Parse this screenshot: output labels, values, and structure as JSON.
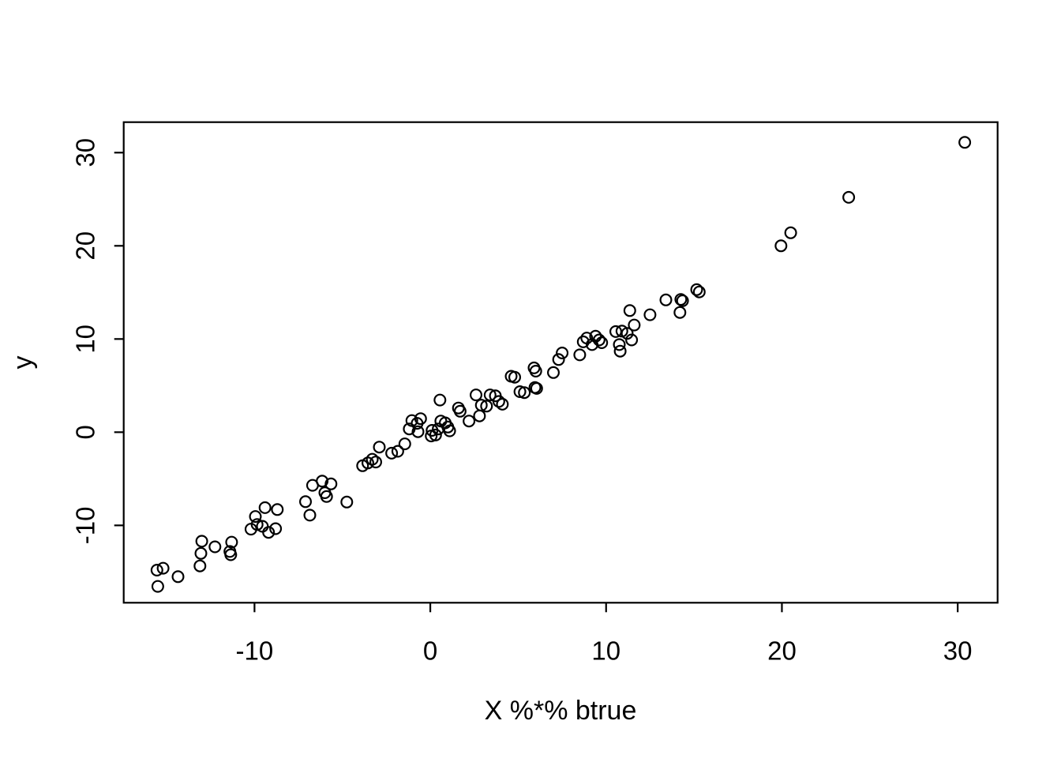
{
  "colors": {
    "foreground": "#000000",
    "background": "#ffffff"
  },
  "chart_data": {
    "type": "scatter",
    "title": "",
    "xlabel": "X %*% btrue",
    "ylabel": "y",
    "marker": "open-circle",
    "grid": false,
    "legend": null,
    "xlim": [
      -17.44,
      32.27
    ],
    "ylim": [
      -18.3,
      33.27
    ],
    "x_tick_values": [
      -10,
      0,
      10,
      20,
      30
    ],
    "x_tick_labels": [
      "-10",
      "0",
      "10",
      "20",
      "30"
    ],
    "y_tick_values": [
      -10,
      0,
      10,
      20,
      30
    ],
    "y_tick_labels": [
      "-10",
      "0",
      "10",
      "20",
      "30"
    ],
    "points": [
      [
        -15.5,
        -16.55
      ],
      [
        -15.55,
        -14.8
      ],
      [
        -15.2,
        -14.6
      ],
      [
        -14.35,
        -15.5
      ],
      [
        -13.1,
        -14.35
      ],
      [
        -13.05,
        -13.0
      ],
      [
        -13.0,
        -11.7
      ],
      [
        -12.25,
        -12.3
      ],
      [
        -11.4,
        -12.8
      ],
      [
        -11.35,
        -13.15
      ],
      [
        -11.3,
        -11.8
      ],
      [
        -10.2,
        -10.4
      ],
      [
        -9.95,
        -9.05
      ],
      [
        -9.85,
        -9.9
      ],
      [
        -9.55,
        -10.1
      ],
      [
        -9.4,
        -8.1
      ],
      [
        -9.2,
        -10.75
      ],
      [
        -8.8,
        -10.35
      ],
      [
        -8.7,
        -8.3
      ],
      [
        -7.1,
        -7.45
      ],
      [
        -6.85,
        -8.9
      ],
      [
        -6.7,
        -5.7
      ],
      [
        -6.15,
        -5.25
      ],
      [
        -6.0,
        -6.5
      ],
      [
        -5.9,
        -6.9
      ],
      [
        -5.65,
        -5.55
      ],
      [
        -4.75,
        -7.5
      ],
      [
        -3.85,
        -3.6
      ],
      [
        -3.55,
        -3.3
      ],
      [
        -3.3,
        -2.9
      ],
      [
        -3.1,
        -3.2
      ],
      [
        -2.9,
        -1.6
      ],
      [
        -2.2,
        -2.25
      ],
      [
        -1.85,
        -2.05
      ],
      [
        -1.45,
        -1.25
      ],
      [
        -1.05,
        1.25
      ],
      [
        -0.75,
        0.95
      ],
      [
        -0.55,
        1.45
      ],
      [
        -0.7,
        0.05
      ],
      [
        -1.2,
        0.35
      ],
      [
        0.1,
        0.2
      ],
      [
        0.05,
        -0.4
      ],
      [
        0.3,
        -0.3
      ],
      [
        0.45,
        0.35
      ],
      [
        0.6,
        1.2
      ],
      [
        0.85,
        1.0
      ],
      [
        1.0,
        0.55
      ],
      [
        1.1,
        0.15
      ],
      [
        0.55,
        3.45
      ],
      [
        1.6,
        2.6
      ],
      [
        1.7,
        2.25
      ],
      [
        2.2,
        1.2
      ],
      [
        2.6,
        4.0
      ],
      [
        2.8,
        1.75
      ],
      [
        2.9,
        2.9
      ],
      [
        3.2,
        2.8
      ],
      [
        3.4,
        4.0
      ],
      [
        3.7,
        3.9
      ],
      [
        3.9,
        3.3
      ],
      [
        4.1,
        3.0
      ],
      [
        4.6,
        6.0
      ],
      [
        4.8,
        5.9
      ],
      [
        5.1,
        4.35
      ],
      [
        5.35,
        4.25
      ],
      [
        5.95,
        4.8
      ],
      [
        6.05,
        4.7
      ],
      [
        5.9,
        6.9
      ],
      [
        6.0,
        6.55
      ],
      [
        7.0,
        6.4
      ],
      [
        7.3,
        7.8
      ],
      [
        7.5,
        8.5
      ],
      [
        8.5,
        8.3
      ],
      [
        8.7,
        9.7
      ],
      [
        8.9,
        10.1
      ],
      [
        9.2,
        9.4
      ],
      [
        9.4,
        10.3
      ],
      [
        9.6,
        9.9
      ],
      [
        9.75,
        9.6
      ],
      [
        10.55,
        10.8
      ],
      [
        10.9,
        10.85
      ],
      [
        11.2,
        10.6
      ],
      [
        11.45,
        9.9
      ],
      [
        10.75,
        9.4
      ],
      [
        10.8,
        8.7
      ],
      [
        11.6,
        11.5
      ],
      [
        11.35,
        13.05
      ],
      [
        12.5,
        12.6
      ],
      [
        13.4,
        14.2
      ],
      [
        14.25,
        14.25
      ],
      [
        14.35,
        14.1
      ],
      [
        14.2,
        12.85
      ],
      [
        15.15,
        15.3
      ],
      [
        15.3,
        15.05
      ],
      [
        19.95,
        20.0
      ],
      [
        20.5,
        21.4
      ],
      [
        23.8,
        25.2
      ],
      [
        30.4,
        31.1
      ]
    ]
  }
}
